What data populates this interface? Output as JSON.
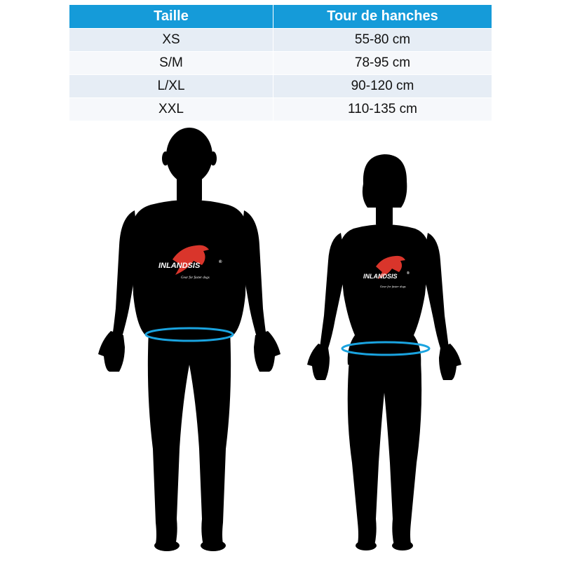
{
  "colors": {
    "header_bg": "#159bd9",
    "row_odd": "#e6edf5",
    "row_even": "#f6f8fb",
    "silhouette": "#000000",
    "hip_ring": "#1aa3df",
    "logo_accent": "#d9352b"
  },
  "table": {
    "headers": [
      "Taille",
      "Tour de hanches"
    ],
    "rows": [
      [
        "XS",
        "55-80 cm"
      ],
      [
        "S/M",
        "78-95 cm"
      ],
      [
        "L/XL",
        "90-120 cm"
      ],
      [
        "XXL",
        "110-135 cm"
      ]
    ]
  },
  "logo": {
    "brand": "INLANDSIS",
    "mark": "®",
    "tagline": "Gear for faster dogs",
    "icon": "leaping-dog-logo"
  }
}
